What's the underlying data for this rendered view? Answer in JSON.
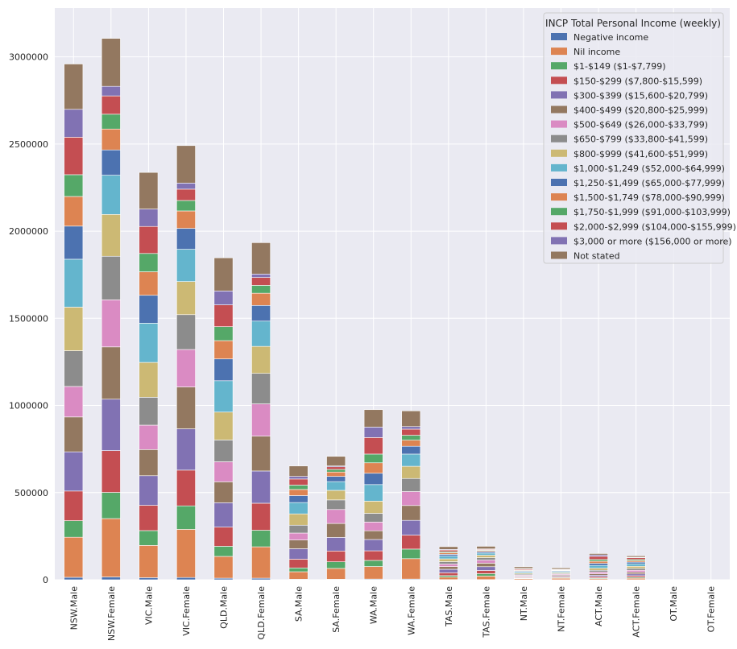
{
  "chart_data": {
    "type": "bar",
    "stacked": true,
    "title": "",
    "xlabel": "",
    "ylabel": "",
    "ylim": [
      0,
      3280000
    ],
    "yticks": [
      0,
      500000,
      1000000,
      1500000,
      2000000,
      2500000,
      3000000
    ],
    "ytick_labels": [
      "0",
      "500000",
      "1000000",
      "1500000",
      "2000000",
      "2500000",
      "3000000"
    ],
    "categories": [
      "NSW.Male",
      "NSW.Female",
      "VIC.Male",
      "VIC.Female",
      "QLD.Male",
      "QLD.Female",
      "SA.Male",
      "SA.Female",
      "WA.Male",
      "WA.Female",
      "TAS.Male",
      "TAS.Female",
      "NT.Male",
      "NT.Female",
      "ACT.Male",
      "ACT.Female",
      "OT.Male",
      "OT.Female"
    ],
    "legend": {
      "title": "INCP Total Personal Income (weekly)",
      "position": "top-right"
    },
    "series": [
      {
        "name": "Negative income",
        "color": "#4c72b0",
        "values": [
          14000,
          16000,
          12000,
          13000,
          9000,
          9000,
          3000,
          3000,
          4000,
          4000,
          1000,
          1000,
          300,
          300,
          400,
          400,
          0,
          0
        ]
      },
      {
        "name": "Nil income",
        "color": "#dd8452",
        "values": [
          230000,
          335000,
          185000,
          276000,
          125000,
          180000,
          43000,
          62000,
          72000,
          117000,
          14000,
          20000,
          6000,
          8000,
          6000,
          8000,
          0,
          0
        ]
      },
      {
        "name": "$1-$149 ($1-$7,799)",
        "color": "#55a868",
        "values": [
          95000,
          150000,
          85000,
          135000,
          58000,
          95000,
          22000,
          38000,
          35000,
          55000,
          9000,
          14000,
          3000,
          4000,
          4000,
          6000,
          0,
          0
        ]
      },
      {
        "name": "$150-$299 ($7,800-$15,599)",
        "color": "#c44e52",
        "values": [
          170000,
          240000,
          145000,
          205000,
          110000,
          155000,
          50000,
          62000,
          55000,
          80000,
          16000,
          18000,
          4000,
          5000,
          8000,
          9000,
          0,
          0
        ]
      },
      {
        "name": "$300-$399 ($15,600-$20,799)",
        "color": "#8172b3",
        "values": [
          225000,
          295000,
          170000,
          237000,
          140000,
          185000,
          60000,
          78000,
          65000,
          85000,
          20000,
          22000,
          4000,
          5000,
          8000,
          10000,
          0,
          0
        ]
      },
      {
        "name": "$400-$499 ($20,800-$25,999)",
        "color": "#937860",
        "values": [
          200000,
          300000,
          150000,
          240000,
          120000,
          200000,
          50000,
          80000,
          50000,
          85000,
          16000,
          20000,
          4000,
          5000,
          8000,
          10000,
          0,
          0
        ]
      },
      {
        "name": "$500-$649 ($26,000-$33,799)",
        "color": "#da8bc3",
        "values": [
          175000,
          270000,
          140000,
          215000,
          115000,
          185000,
          40000,
          80000,
          50000,
          80000,
          14000,
          18000,
          5000,
          5000,
          10000,
          11000,
          0,
          0
        ]
      },
      {
        "name": "$650-$799 ($33,800-$41,599)",
        "color": "#8c8c8c",
        "values": [
          205000,
          250000,
          160000,
          200000,
          125000,
          175000,
          45000,
          55000,
          50000,
          75000,
          14000,
          14000,
          5000,
          5000,
          10000,
          11000,
          0,
          0
        ]
      },
      {
        "name": "$800-$999 ($41,600-$51,999)",
        "color": "#ccb974",
        "values": [
          250000,
          240000,
          200000,
          190000,
          160000,
          155000,
          65000,
          55000,
          70000,
          70000,
          16000,
          14000,
          6000,
          5000,
          12000,
          12000,
          0,
          0
        ]
      },
      {
        "name": "$1,000-$1,249 ($52,000-$64,999)",
        "color": "#64b5cd",
        "values": [
          275000,
          225000,
          225000,
          185000,
          180000,
          145000,
          65000,
          50000,
          95000,
          70000,
          16000,
          12000,
          7000,
          6000,
          16000,
          14000,
          0,
          0
        ]
      },
      {
        "name": "$1,250-$1,499 ($65,000-$77,999)",
        "color": "#4c72b0",
        "values": [
          190000,
          145000,
          160000,
          120000,
          125000,
          90000,
          40000,
          30000,
          65000,
          45000,
          10000,
          8000,
          5000,
          4000,
          12000,
          10000,
          0,
          0
        ]
      },
      {
        "name": "$1,500-$1,749 ($78,000-$90,999)",
        "color": "#dd8452",
        "values": [
          170000,
          120000,
          135000,
          100000,
          105000,
          70000,
          35000,
          25000,
          60000,
          35000,
          9000,
          6000,
          4000,
          3000,
          12000,
          8000,
          0,
          0
        ]
      },
      {
        "name": "$1,750-$1,999 ($91,000-$103,999)",
        "color": "#55a868",
        "values": [
          125000,
          85000,
          105000,
          60000,
          80000,
          45000,
          25000,
          15000,
          50000,
          28000,
          6000,
          4000,
          3000,
          2000,
          10000,
          7000,
          0,
          0
        ]
      },
      {
        "name": "$2,000-$2,999 ($104,000-$155,999)",
        "color": "#c44e52",
        "values": [
          215000,
          105000,
          155000,
          65000,
          125000,
          45000,
          35000,
          15000,
          95000,
          35000,
          9000,
          4000,
          5000,
          2000,
          18000,
          10000,
          0,
          0
        ]
      },
      {
        "name": "$3,000 or more ($156,000 or more)",
        "color": "#8172b3",
        "values": [
          160000,
          55000,
          100000,
          35000,
          80000,
          20000,
          15000,
          5000,
          60000,
          15000,
          4000,
          2000,
          3000,
          1000,
          8000,
          3000,
          0,
          0
        ]
      },
      {
        "name": "Not stated",
        "color": "#937860",
        "values": [
          260000,
          275000,
          210000,
          215000,
          190000,
          180000,
          60000,
          55000,
          100000,
          90000,
          16000,
          15000,
          10000,
          8000,
          8000,
          8000,
          0,
          0
        ]
      }
    ]
  }
}
